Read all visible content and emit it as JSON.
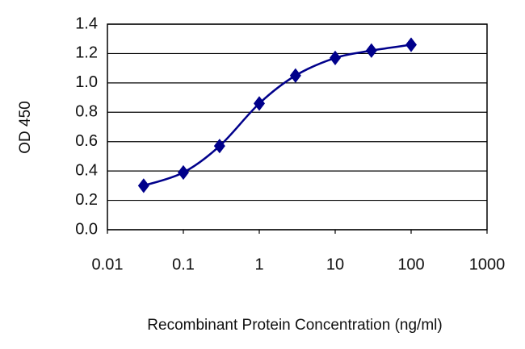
{
  "chart_data": {
    "type": "line",
    "x_label": "Recombinant Protein Concentration (ng/ml)",
    "y_label": "OD 450",
    "x": [
      0.03,
      0.1,
      0.3,
      1,
      3,
      10,
      30,
      100
    ],
    "values": [
      0.3,
      0.39,
      0.57,
      0.86,
      1.05,
      1.17,
      1.22,
      1.26
    ],
    "color": "#00008b",
    "x_scale": "log",
    "xlim": [
      0.01,
      1000
    ],
    "xticks": [
      0.01,
      0.1,
      1,
      10,
      100,
      1000
    ],
    "ylim": [
      0,
      1.4
    ],
    "yticks": [
      {
        "value": 0,
        "label": "0.0"
      },
      0.2,
      0.4,
      0.6,
      0.8,
      {
        "value": 1,
        "label": "1.0"
      },
      1.2,
      1.4
    ],
    "grid": true
  }
}
